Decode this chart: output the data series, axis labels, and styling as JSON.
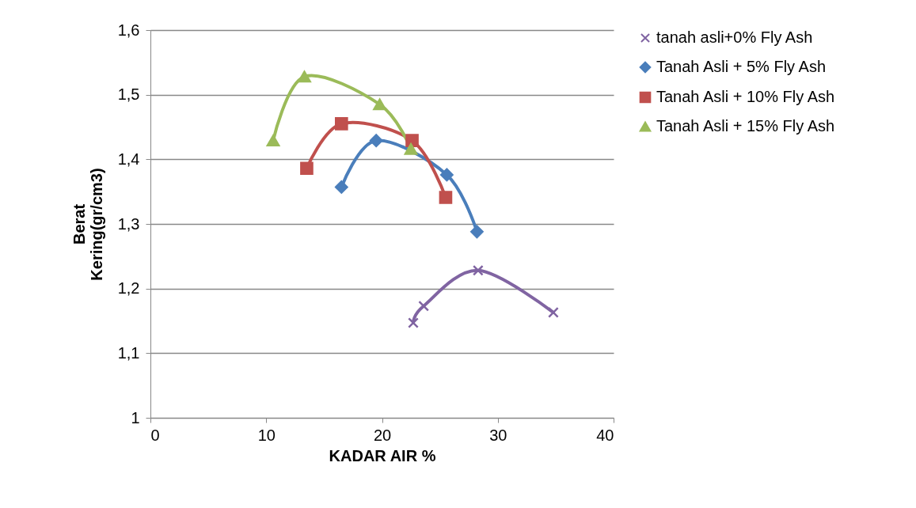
{
  "chart_data": {
    "type": "line",
    "xlabel": "KADAR AIR %",
    "ylabel": "Berat Kering(gr/cm3)",
    "xlim": [
      0,
      40
    ],
    "xticks": [
      0,
      10,
      20,
      30,
      40
    ],
    "ylim": [
      1,
      1.6
    ],
    "yticks": [
      1,
      {
        "value": 1.1,
        "label": "1,1"
      },
      {
        "value": 1.2,
        "label": "1,2"
      },
      {
        "value": 1.3,
        "label": "1,3"
      },
      {
        "value": 1.4,
        "label": "1,4"
      },
      {
        "value": 1.5,
        "label": "1,5"
      },
      {
        "value": 1.6,
        "label": "1,6"
      }
    ],
    "grid": "y",
    "legend": "right",
    "line_style": "solid",
    "series": [
      {
        "name": "tanah asli+0% Fly Ash",
        "color": "#8064a2",
        "marker": "cross",
        "x": [
          22.7,
          23.6,
          28.3,
          34.8
        ],
        "values": [
          1.147,
          1.173,
          1.228,
          1.163
        ]
      },
      {
        "name": "Tanah Asli + 5% Fly Ash",
        "color": "#4a7ebb",
        "marker": "diamond",
        "x": [
          16.5,
          19.5,
          25.6,
          28.2
        ],
        "values": [
          1.357,
          1.429,
          1.376,
          1.288
        ]
      },
      {
        "name": "Tanah Asli + 10% Fly Ash",
        "color": "#c0504d",
        "marker": "square",
        "x": [
          13.5,
          16.5,
          22.6,
          25.5
        ],
        "values": [
          1.386,
          1.455,
          1.429,
          1.341
        ]
      },
      {
        "name": "Tanah Asli + 15% Fly Ash",
        "color": "#9bbb59",
        "marker": "triangle",
        "x": [
          10.6,
          13.3,
          19.8,
          22.5
        ],
        "values": [
          1.429,
          1.528,
          1.485,
          1.416
        ]
      }
    ]
  }
}
